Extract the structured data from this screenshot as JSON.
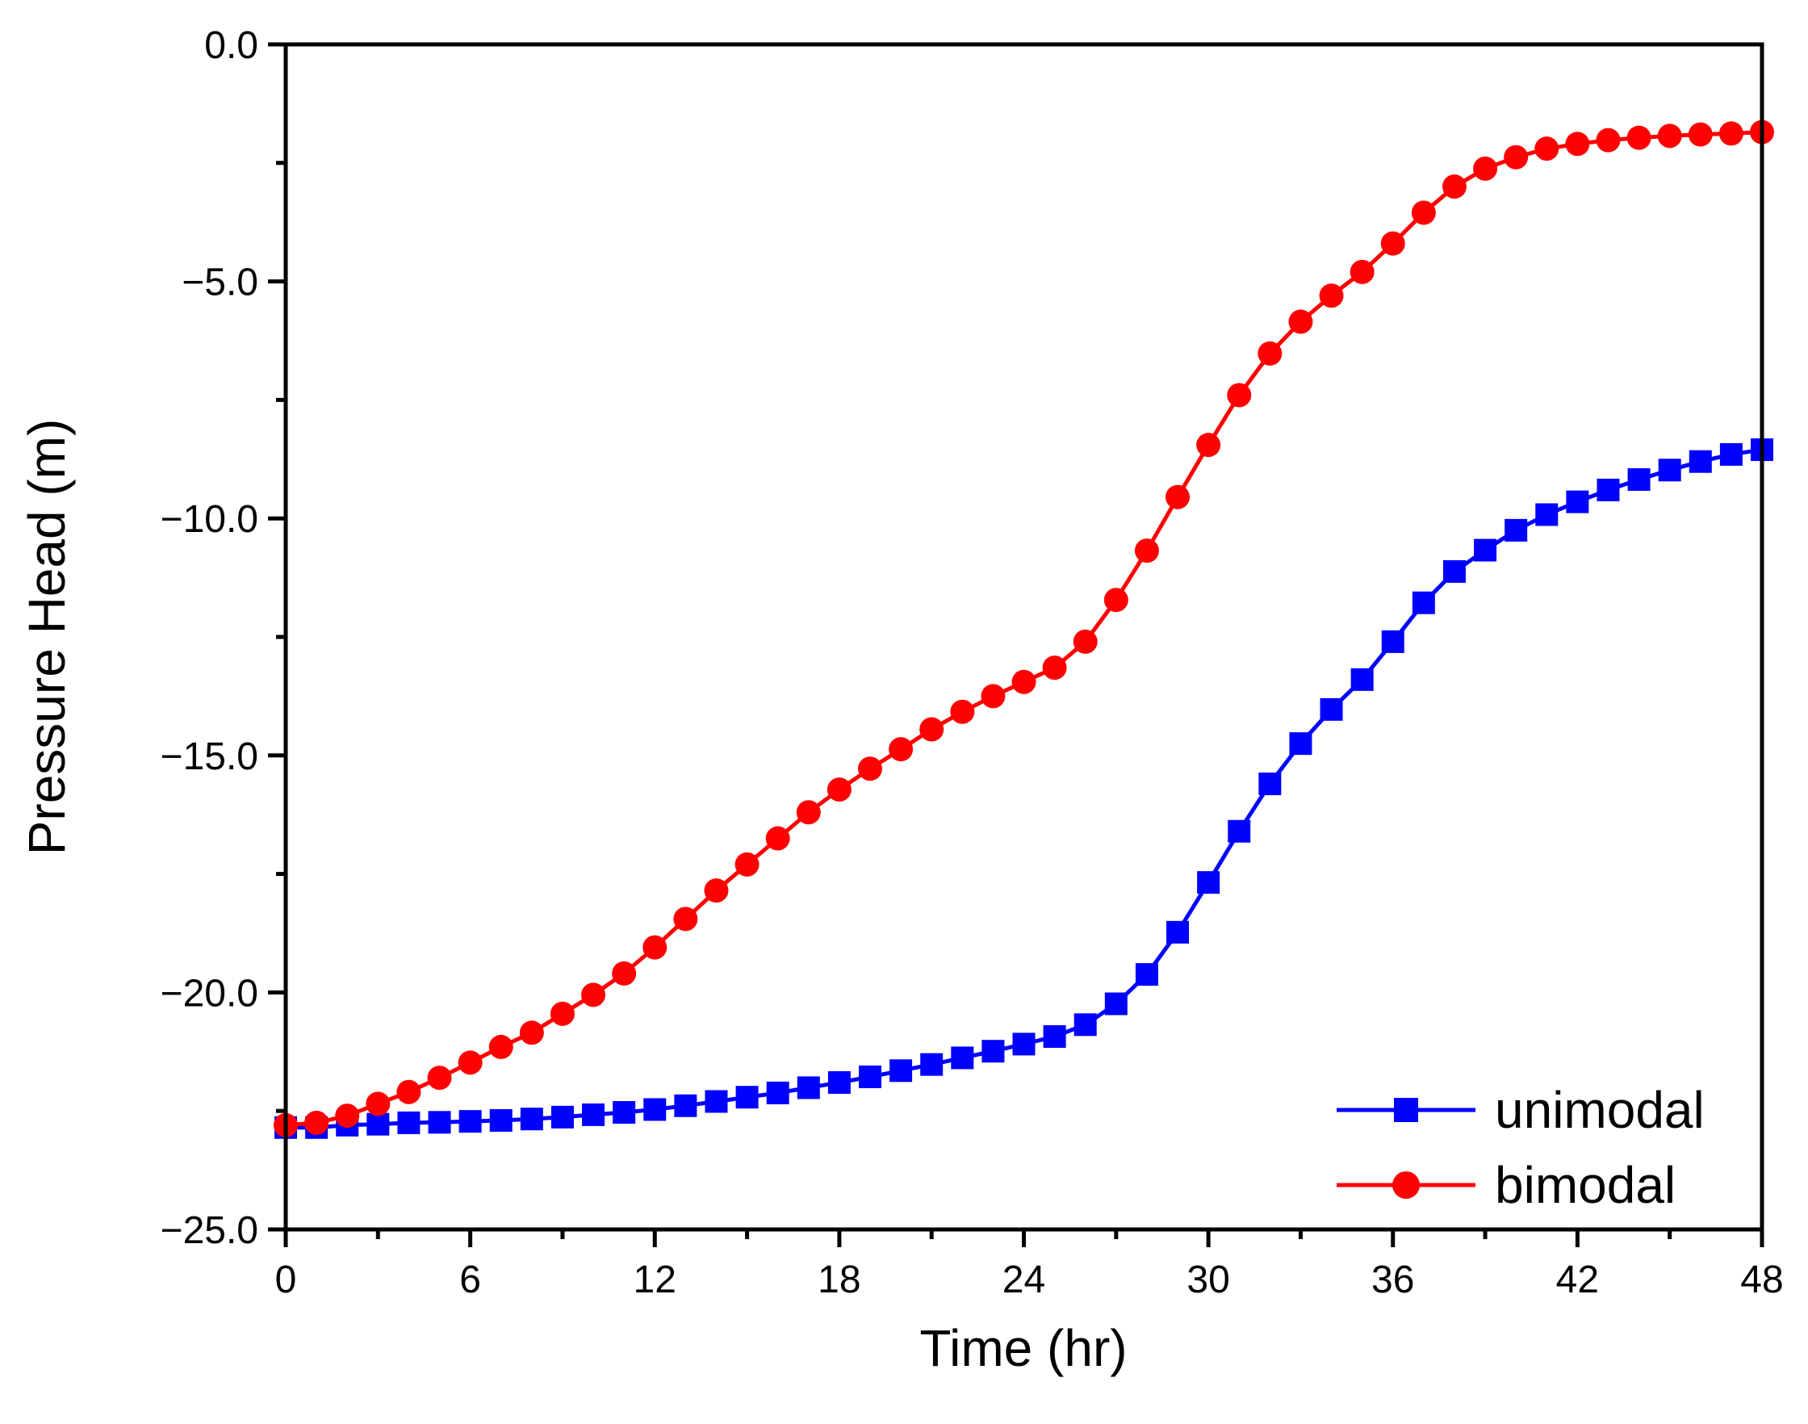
{
  "chart_data": {
    "type": "line",
    "title": "",
    "xlabel": "Time (hr)",
    "ylabel": "Pressure Head (m)",
    "xlim": [
      0,
      48
    ],
    "ylim": [
      -25.0,
      0.0
    ],
    "x_ticks": [
      0,
      6,
      12,
      18,
      24,
      30,
      36,
      42,
      48
    ],
    "x_tick_labels": [
      "0",
      "6",
      "12",
      "18",
      "24",
      "30",
      "36",
      "42",
      "48"
    ],
    "y_ticks": [
      0.0,
      -5.0,
      -10.0,
      -15.0,
      -20.0,
      -25.0
    ],
    "y_tick_labels": [
      "0.0",
      "−5.0",
      "−10.0",
      "−15.0",
      "−20.0",
      "−25.0"
    ],
    "grid": false,
    "legend_position": "bottom-right",
    "x": [
      0,
      1,
      2,
      3,
      4,
      5,
      6,
      7,
      8,
      9,
      10,
      11,
      12,
      13,
      14,
      15,
      16,
      17,
      18,
      19,
      20,
      21,
      22,
      23,
      24,
      25,
      26,
      27,
      28,
      29,
      30,
      31,
      32,
      33,
      34,
      35,
      36,
      37,
      38,
      39,
      40,
      41,
      42,
      43,
      44,
      45,
      46,
      47,
      48
    ],
    "series": [
      {
        "name": "unimodal",
        "color": "#0000ff",
        "marker": "square",
        "values": [
          -22.85,
          -22.85,
          -22.8,
          -22.78,
          -22.75,
          -22.74,
          -22.72,
          -22.7,
          -22.67,
          -22.63,
          -22.58,
          -22.53,
          -22.47,
          -22.39,
          -22.3,
          -22.21,
          -22.12,
          -22.01,
          -21.9,
          -21.78,
          -21.65,
          -21.52,
          -21.38,
          -21.24,
          -21.09,
          -20.93,
          -20.68,
          -20.24,
          -19.62,
          -18.73,
          -17.68,
          -16.6,
          -15.6,
          -14.75,
          -14.03,
          -13.4,
          -12.6,
          -11.78,
          -11.12,
          -10.67,
          -10.25,
          -9.92,
          -9.65,
          -9.4,
          -9.18,
          -8.98,
          -8.8,
          -8.65,
          -8.55
        ]
      },
      {
        "name": "bimodal",
        "color": "#ff0000",
        "marker": "circle",
        "values": [
          -22.8,
          -22.75,
          -22.6,
          -22.35,
          -22.1,
          -21.8,
          -21.48,
          -21.15,
          -20.85,
          -20.45,
          -20.05,
          -19.6,
          -19.05,
          -18.45,
          -17.85,
          -17.3,
          -16.75,
          -16.2,
          -15.72,
          -15.28,
          -14.87,
          -14.45,
          -14.08,
          -13.75,
          -13.45,
          -13.15,
          -12.6,
          -11.72,
          -10.68,
          -9.55,
          -8.45,
          -7.4,
          -6.52,
          -5.85,
          -5.3,
          -4.8,
          -4.2,
          -3.55,
          -3.0,
          -2.62,
          -2.38,
          -2.2,
          -2.1,
          -2.02,
          -1.97,
          -1.93,
          -1.9,
          -1.88,
          -1.85
        ]
      }
    ]
  }
}
